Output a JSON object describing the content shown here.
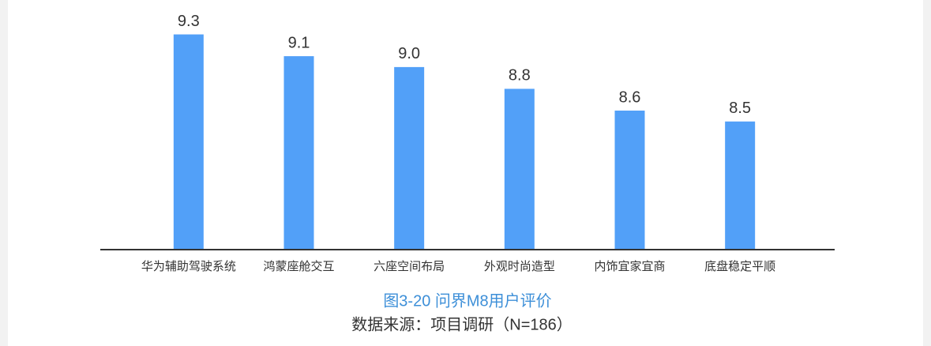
{
  "chart_data": {
    "type": "bar",
    "title": "图3-20 问界M8用户评价",
    "source": "数据来源：项目调研（N=186）",
    "categories": [
      "华为辅助驾驶系统",
      "鸿蒙座舱交互",
      "六座空间布局",
      "外观时尚造型",
      "内饰宜家宜商",
      "底盘稳定平顺"
    ],
    "values": [
      9.3,
      9.1,
      9.0,
      8.8,
      8.6,
      8.5
    ],
    "value_labels": [
      "9.3",
      "9.1",
      "9.0",
      "8.8",
      "8.6",
      "8.5"
    ],
    "color": "#52a0f8",
    "ylim": [
      7.33,
      9.5
    ]
  }
}
